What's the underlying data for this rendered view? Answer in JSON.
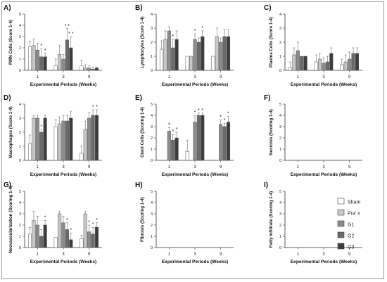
{
  "legend": {
    "entries": [
      {
        "label": "Sham",
        "color": "#ffffff"
      },
      {
        "label": "Pra' x",
        "color": "#c8c8c8"
      },
      {
        "label": "G1",
        "color": "#8c8c8c"
      },
      {
        "label": "G2",
        "color": "#6a6a6a"
      },
      {
        "label": "G3",
        "color": "#3c3c3c"
      }
    ]
  },
  "chart_data": [
    {
      "type": "bar",
      "panel_label": "A)",
      "ylabel": "PMN Cells (Score 1-4)",
      "xlabel": "Experimental Periods (Weeks)",
      "categories": [
        "1",
        "3",
        "9"
      ],
      "ylim": [
        0,
        5
      ],
      "yticks": [
        0,
        1,
        2,
        3,
        4,
        5
      ],
      "series": [
        {
          "name": "Sham",
          "values": [
            2.1,
            0.4,
            0.4
          ],
          "errors": [
            0.5,
            0.6,
            0.5
          ]
        },
        {
          "name": "Pra' x",
          "values": [
            2.2,
            1.4,
            0.2
          ],
          "errors": [
            0.6,
            0.8,
            0.3
          ]
        },
        {
          "name": "G1",
          "values": [
            1.8,
            1.0,
            0.2
          ],
          "errors": [
            0.6,
            0.4,
            0.2
          ]
        },
        {
          "name": "G2",
          "values": [
            1.2,
            2.7,
            0.1
          ],
          "errors": [
            0.7,
            1.0,
            0.2
          ]
        },
        {
          "name": "G3",
          "values": [
            1.2,
            2.0,
            0.2
          ],
          "errors": [
            0.3,
            1.0,
            0.1
          ]
        }
      ],
      "annotations": [
        {
          "category": "1",
          "series": "G2",
          "text": "*"
        },
        {
          "category": "1",
          "series": "G3",
          "text": "*"
        },
        {
          "category": "3",
          "series": "G2",
          "text": "* *"
        },
        {
          "category": "3",
          "series": "G3",
          "text": "* *"
        }
      ]
    },
    {
      "type": "bar",
      "panel_label": "B)",
      "ylabel": "Lymphocytes (Score 1-4)",
      "xlabel": "Experimental Periods (Weeks)",
      "categories": [
        "1",
        "3",
        "9"
      ],
      "ylim": [
        0,
        4
      ],
      "yticks": [
        0,
        1,
        2,
        3,
        4
      ],
      "series": [
        {
          "name": "Sham",
          "values": [
            1.5,
            1.0,
            1.0
          ],
          "errors": [
            0.6,
            0.0,
            0.0
          ]
        },
        {
          "name": "Pra' x",
          "values": [
            2.2,
            1.0,
            2.4
          ],
          "errors": [
            0.6,
            0.0,
            0.6
          ]
        },
        {
          "name": "G1",
          "values": [
            2.8,
            2.2,
            2.0
          ],
          "errors": [
            0.3,
            0.4,
            0.3
          ]
        },
        {
          "name": "G2",
          "values": [
            1.6,
            2.0,
            2.4
          ],
          "errors": [
            0.6,
            0.3,
            0.5
          ]
        },
        {
          "name": "G3",
          "values": [
            2.2,
            2.4,
            2.4
          ],
          "errors": [
            0.6,
            0.4,
            0.5
          ]
        }
      ],
      "annotations": [
        {
          "category": "1",
          "series": "G2",
          "text": "*"
        },
        {
          "category": "3",
          "series": "G1",
          "text": "*"
        },
        {
          "category": "3",
          "series": "G3",
          "text": "*"
        }
      ]
    },
    {
      "type": "bar",
      "panel_label": "C)",
      "ylabel": "Plasma Cells (Score 1-4)",
      "xlabel": "Experimental Periods (Weeks)",
      "categories": [
        "1",
        "3",
        "9"
      ],
      "ylim": [
        0,
        4
      ],
      "yticks": [
        0,
        1,
        2,
        3,
        4
      ],
      "series": [
        {
          "name": "Sham",
          "values": [
            0.2,
            0.6,
            0.4
          ],
          "errors": [
            0.4,
            0.5,
            0.4
          ]
        },
        {
          "name": "Pra' x",
          "values": [
            1.1,
            0.8,
            0.6
          ],
          "errors": [
            0.5,
            0.4,
            0.5
          ]
        },
        {
          "name": "G1",
          "values": [
            1.4,
            0.5,
            0.8
          ],
          "errors": [
            0.6,
            0.4,
            0.5
          ]
        },
        {
          "name": "G2",
          "values": [
            1.0,
            0.6,
            1.2
          ],
          "errors": [
            0.0,
            0.4,
            0.4
          ]
        },
        {
          "name": "G3",
          "values": [
            1.0,
            1.2,
            1.2
          ],
          "errors": [
            0.0,
            0.4,
            0.4
          ]
        }
      ],
      "annotations": []
    },
    {
      "type": "bar",
      "panel_label": "D)",
      "ylabel": "Macrophages (Score 1-4)",
      "xlabel": "Experimental Periods (Weeks)",
      "categories": [
        "1",
        "3",
        "9"
      ],
      "ylim": [
        0,
        4
      ],
      "yticks": [
        0,
        1,
        2,
        3,
        4
      ],
      "series": [
        {
          "name": "Sham",
          "values": [
            1.2,
            2.4,
            0.5
          ],
          "errors": [
            0.6,
            0.5,
            0.5
          ]
        },
        {
          "name": "Pra' x",
          "values": [
            3.0,
            2.6,
            2.2
          ],
          "errors": [
            0.2,
            0.5,
            0.6
          ]
        },
        {
          "name": "G1",
          "values": [
            3.0,
            2.8,
            3.0
          ],
          "errors": [
            0.2,
            0.4,
            0.4
          ]
        },
        {
          "name": "G2",
          "values": [
            2.0,
            2.8,
            3.2
          ],
          "errors": [
            0.2,
            0.4,
            0.4
          ]
        },
        {
          "name": "G3",
          "values": [
            3.0,
            3.0,
            3.2
          ],
          "errors": [
            0.2,
            0.5,
            0.4
          ]
        }
      ],
      "annotations": [
        {
          "category": "1",
          "series": "G2",
          "text": "*"
        },
        {
          "category": "9",
          "series": "G2",
          "text": "*"
        },
        {
          "category": "9",
          "series": "G3",
          "text": "*"
        }
      ]
    },
    {
      "type": "bar",
      "panel_label": "E)",
      "ylabel": "Giant Cells (Scoring 1-4)",
      "xlabel": "Experimental Periods (Weeks)",
      "categories": [
        "1",
        "3",
        "9"
      ],
      "ylim": [
        0,
        5
      ],
      "yticks": [
        0,
        1,
        2,
        3,
        4,
        5
      ],
      "series": [
        {
          "name": "Sham",
          "values": [
            0.0,
            0.8,
            0.0
          ],
          "errors": [
            0.0,
            1.0,
            0.0
          ]
        },
        {
          "name": "Pra' x",
          "values": [
            0.0,
            0.0,
            0.0
          ],
          "errors": [
            0.0,
            0.0,
            0.0
          ]
        },
        {
          "name": "G1",
          "values": [
            2.6,
            3.4,
            3.2
          ],
          "errors": [
            0.3,
            0.6,
            0.4
          ]
        },
        {
          "name": "G2",
          "values": [
            1.8,
            4.0,
            3.0
          ],
          "errors": [
            0.5,
            0.2,
            0.3
          ]
        },
        {
          "name": "G3",
          "values": [
            2.0,
            4.0,
            3.4
          ],
          "errors": [
            0.5,
            0.2,
            0.5
          ]
        }
      ],
      "annotations": [
        {
          "category": "1",
          "series": "G1",
          "text": "*"
        },
        {
          "category": "1",
          "series": "G2",
          "text": "*"
        },
        {
          "category": "1",
          "series": "G3",
          "text": "*"
        },
        {
          "category": "3",
          "series": "G1",
          "text": "*"
        },
        {
          "category": "3",
          "series": "G2",
          "text": "*"
        },
        {
          "category": "3",
          "series": "G3",
          "text": "*"
        },
        {
          "category": "9",
          "series": "G1",
          "text": "*"
        },
        {
          "category": "9",
          "series": "G2",
          "text": "*"
        },
        {
          "category": "9",
          "series": "G3",
          "text": "*"
        }
      ]
    },
    {
      "type": "bar",
      "panel_label": "F)",
      "ylabel": "Necrosis (Scoring 1-4)",
      "xlabel": "Experimental Periods (Weeks)",
      "categories": [
        "1",
        "3",
        "9"
      ],
      "ylim": [
        0,
        5
      ],
      "yticks": [
        0,
        1,
        2,
        3,
        4,
        5
      ],
      "series": [],
      "annotations": []
    },
    {
      "type": "bar",
      "panel_label": "G)",
      "ylabel": "Neovascularization (Scoring 1-4)",
      "xlabel": "Experimental Periods (Weeks)",
      "categories": [
        "1",
        "3",
        "9"
      ],
      "ylim": [
        0,
        5
      ],
      "yticks": [
        0,
        1,
        2,
        3,
        4,
        5
      ],
      "series": [
        {
          "name": "Sham",
          "values": [
            1.2,
            0.9,
            0.8
          ],
          "errors": [
            0.6,
            0.0,
            0.3
          ]
        },
        {
          "name": "Pra' x",
          "values": [
            2.4,
            3.0,
            3.0
          ],
          "errors": [
            0.8,
            0.2,
            0.2
          ]
        },
        {
          "name": "G1",
          "values": [
            2.0,
            2.2,
            1.4
          ],
          "errors": [
            0.8,
            0.6,
            0.6
          ]
        },
        {
          "name": "G2",
          "values": [
            1.0,
            1.6,
            1.2
          ],
          "errors": [
            0.6,
            0.6,
            0.6
          ]
        },
        {
          "name": "G3",
          "values": [
            2.0,
            0.7,
            1.8
          ],
          "errors": [
            0.4,
            0.6,
            0.4
          ]
        }
      ],
      "annotations": [
        {
          "category": "1",
          "series": "G3",
          "text": "*"
        },
        {
          "category": "3",
          "series": "G2",
          "text": "*"
        },
        {
          "category": "3",
          "series": "G3",
          "text": "*"
        },
        {
          "category": "9",
          "series": "G1",
          "text": "*"
        },
        {
          "category": "9",
          "series": "G2",
          "text": "*"
        },
        {
          "category": "9",
          "series": "G3",
          "text": "*"
        }
      ]
    },
    {
      "type": "bar",
      "panel_label": "H)",
      "ylabel": "Fibrosis (Scoring 1-4)",
      "xlabel": "Experimental Periods (Weeks)",
      "categories": [
        "1",
        "3",
        "9"
      ],
      "ylim": [
        0,
        5
      ],
      "yticks": [
        0,
        1,
        2,
        3,
        4,
        5
      ],
      "series": [],
      "annotations": []
    },
    {
      "type": "bar",
      "panel_label": "I)",
      "ylabel": "Fatty Infiltrate (Scoring 1-4)",
      "xlabel": "Experimental Periods (Weeks)",
      "categories": [
        "1",
        "3",
        "9"
      ],
      "ylim": [
        0,
        5
      ],
      "yticks": [
        0,
        1,
        2,
        3,
        4,
        5
      ],
      "series": [],
      "annotations": []
    }
  ]
}
